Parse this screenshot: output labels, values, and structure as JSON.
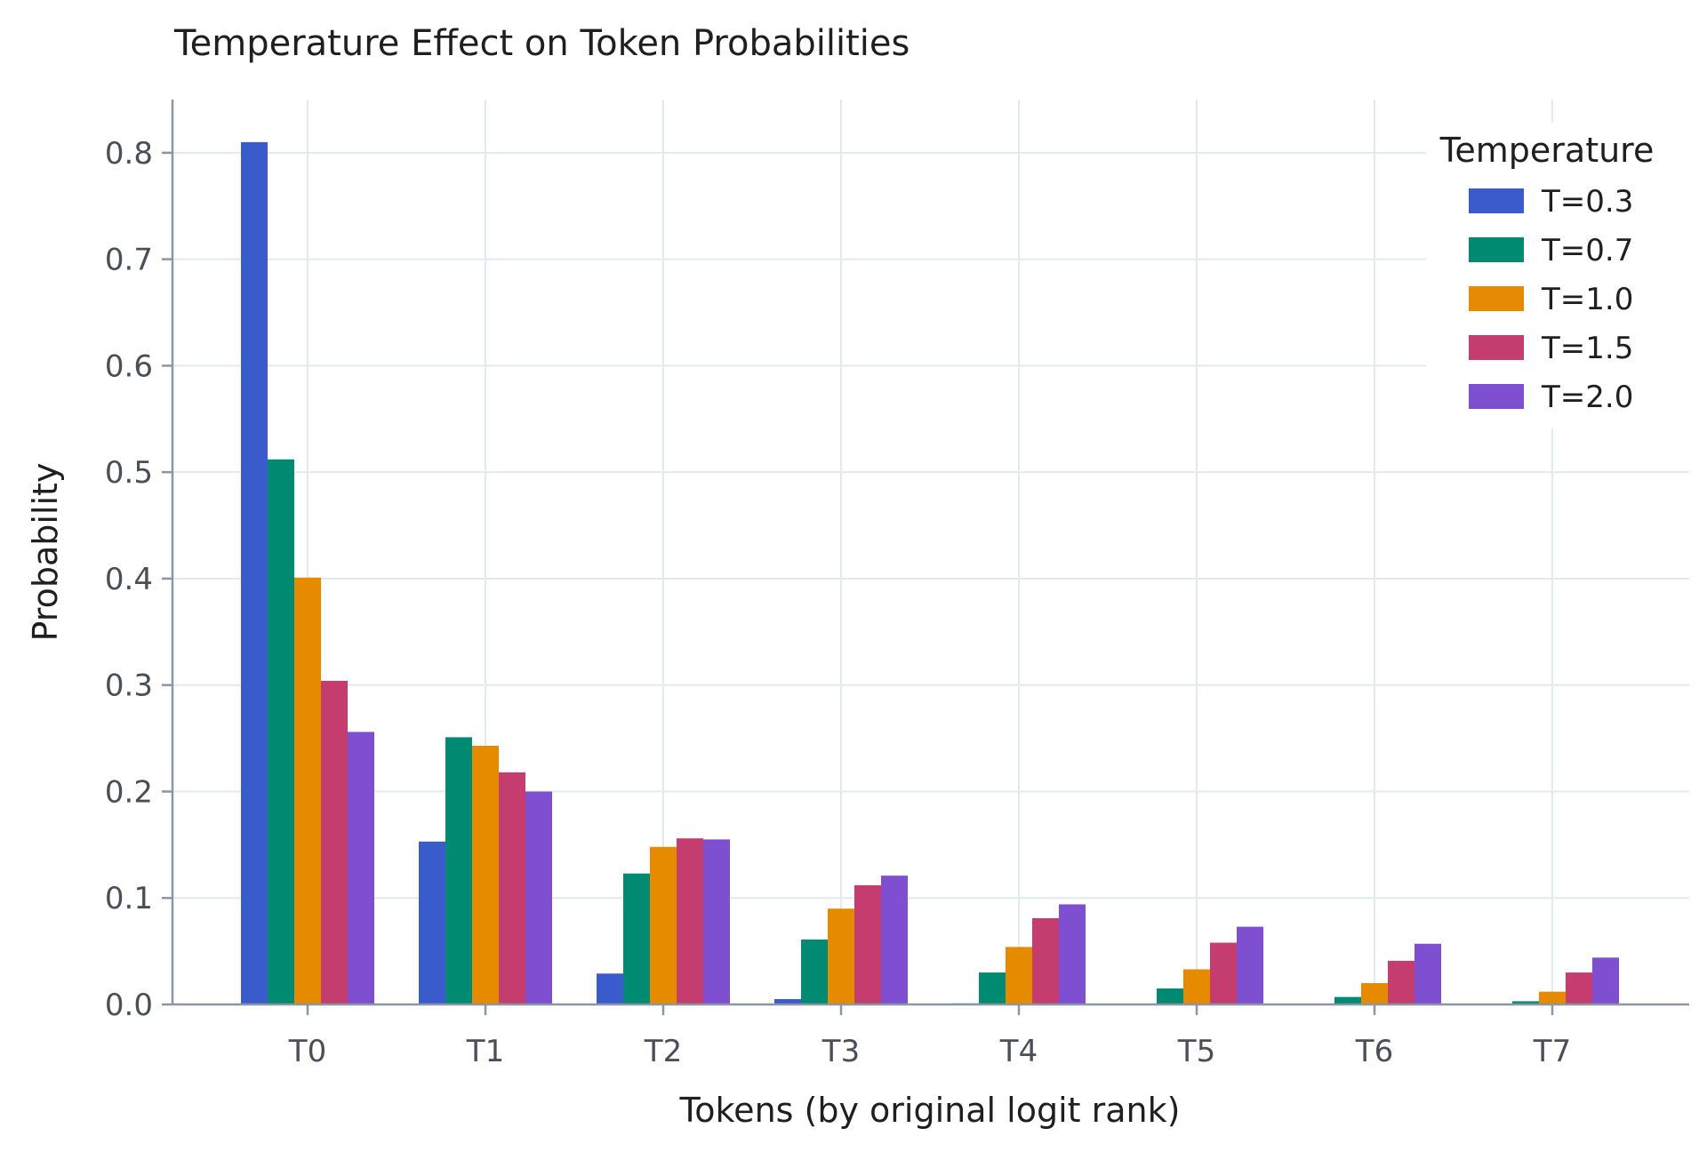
{
  "chart_data": {
    "type": "bar",
    "title": "Temperature Effect on Token Probabilities",
    "xlabel": "Tokens (by original logit rank)",
    "ylabel": "Probability",
    "categories": [
      "T0",
      "T1",
      "T2",
      "T3",
      "T4",
      "T5",
      "T6",
      "T7"
    ],
    "ylim": [
      0,
      0.85
    ],
    "yticks": [
      0.0,
      0.1,
      0.2,
      0.3,
      0.4,
      0.5,
      0.6,
      0.7,
      0.8
    ],
    "ytick_labels": [
      "0.0",
      "0.1",
      "0.2",
      "0.3",
      "0.4",
      "0.5",
      "0.6",
      "0.7",
      "0.8"
    ],
    "grid": true,
    "legend": {
      "title": "Temperature",
      "position": "top-right"
    },
    "series": [
      {
        "name": "T=0.3",
        "color": "#3a5bcc",
        "values": [
          0.81,
          0.153,
          0.029,
          0.005,
          0.001,
          0.0,
          0.0,
          0.0
        ]
      },
      {
        "name": "T=0.7",
        "color": "#008a72",
        "values": [
          0.512,
          0.251,
          0.123,
          0.061,
          0.03,
          0.015,
          0.007,
          0.003
        ]
      },
      {
        "name": "T=1.0",
        "color": "#e68a00",
        "values": [
          0.401,
          0.243,
          0.148,
          0.09,
          0.054,
          0.033,
          0.02,
          0.012
        ]
      },
      {
        "name": "T=1.5",
        "color": "#c53d6e",
        "values": [
          0.304,
          0.218,
          0.156,
          0.112,
          0.081,
          0.058,
          0.041,
          0.03
        ]
      },
      {
        "name": "T=2.0",
        "color": "#7f4fd1",
        "values": [
          0.256,
          0.2,
          0.155,
          0.121,
          0.094,
          0.073,
          0.057,
          0.044
        ]
      }
    ]
  }
}
